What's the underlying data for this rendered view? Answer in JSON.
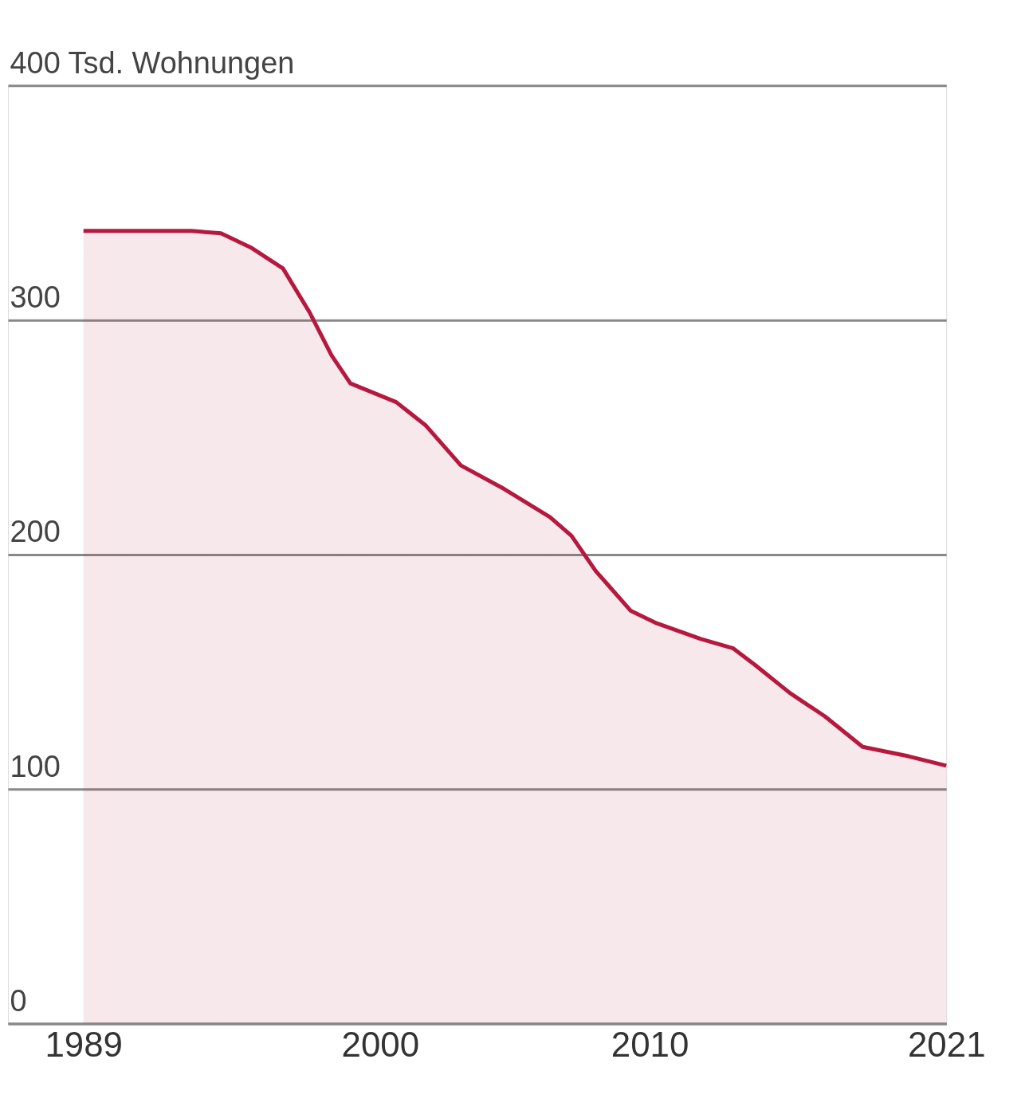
{
  "chart_data": {
    "type": "area",
    "x": [
      1989,
      1993,
      1994.1,
      1995.2,
      1996.4,
      1997.4,
      1998.2,
      1998.9,
      2000.6,
      2001.7,
      2003.0,
      2004.6,
      2006.3,
      2007.1,
      2008.0,
      2009.3,
      2010.2,
      2011.9,
      2013.1,
      2013.9,
      2015.2,
      2016.5,
      2017.9,
      2019.6,
      2021
    ],
    "series": [
      {
        "color": "#b5193f",
        "values": [
          338,
          338,
          337,
          331,
          322,
          303,
          285,
          273,
          265,
          255,
          238,
          228,
          216,
          208,
          193,
          176,
          171,
          164,
          160,
          153,
          141,
          131,
          118,
          114,
          110
        ]
      }
    ],
    "xlim": [
      1986.2,
      2021
    ],
    "xticks": [
      1989,
      2000,
      2010,
      2021
    ],
    "ylim": [
      0,
      400
    ],
    "yticks": [
      0,
      100,
      200,
      300,
      {
        "value": 400,
        "label": "400 Tsd. Wohnungen"
      }
    ],
    "grid": "y"
  }
}
